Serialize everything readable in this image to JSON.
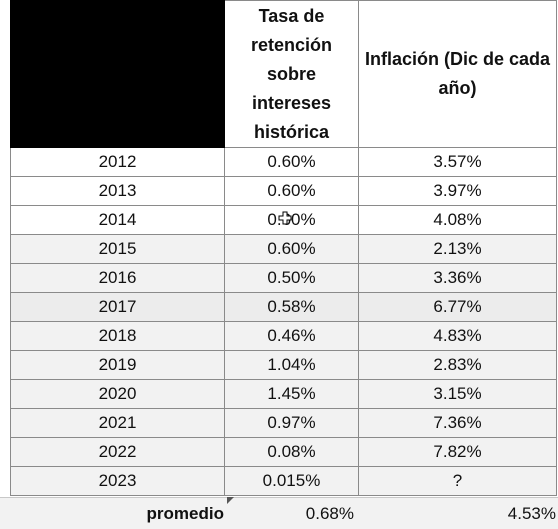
{
  "table": {
    "header": {
      "col1": "",
      "col2": "Tasa de retención sobre intereses histórica",
      "col3": "Inflación (Dic de cada año)"
    },
    "rows": [
      {
        "year": "2012",
        "rate": "0.60%",
        "inflation": "3.57%"
      },
      {
        "year": "2013",
        "rate": "0.60%",
        "inflation": "3.97%"
      },
      {
        "year": "2014",
        "rate": "0.60%",
        "inflation": "4.08%"
      },
      {
        "year": "2015",
        "rate": "0.60%",
        "inflation": "2.13%"
      },
      {
        "year": "2016",
        "rate": "0.50%",
        "inflation": "3.36%"
      },
      {
        "year": "2017",
        "rate": "0.58%",
        "inflation": "6.77%"
      },
      {
        "year": "2018",
        "rate": "0.46%",
        "inflation": "4.83%"
      },
      {
        "year": "2019",
        "rate": "1.04%",
        "inflation": "2.83%"
      },
      {
        "year": "2020",
        "rate": "1.45%",
        "inflation": "3.15%"
      },
      {
        "year": "2021",
        "rate": "0.97%",
        "inflation": "7.36%"
      },
      {
        "year": "2022",
        "rate": "0.08%",
        "inflation": "7.82%"
      },
      {
        "year": "2023",
        "rate": "0.015%",
        "inflation": "?"
      }
    ],
    "summary": {
      "label": "promedio",
      "rate": "0.68%",
      "inflation": "4.53%"
    }
  },
  "colors": {
    "header_block": "#000000",
    "grid_line": "#8a8a8a",
    "row_shade": "#f2f2f2"
  }
}
